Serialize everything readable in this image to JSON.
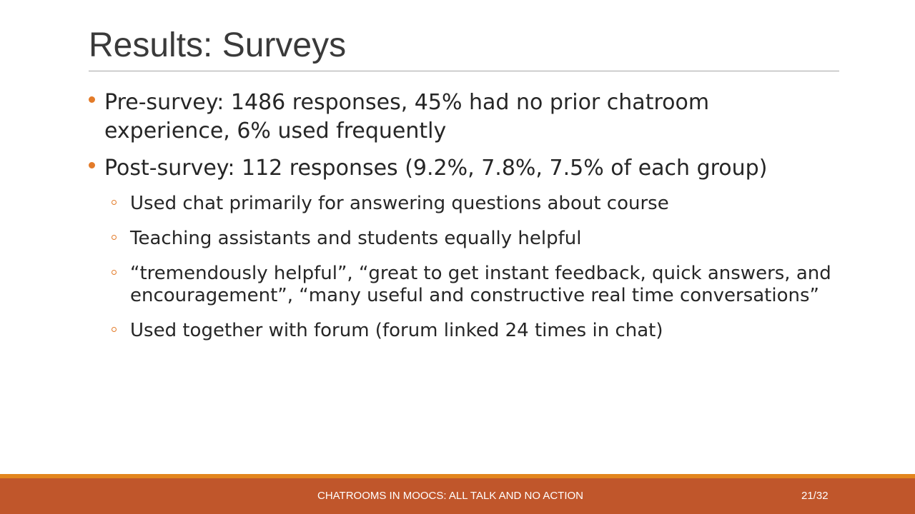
{
  "slide": {
    "title": "Results: Surveys",
    "bullets": [
      {
        "text": "Pre-survey: 1486 responses, 45% had no prior chatroom experience, 6% used frequently"
      },
      {
        "text": "Post-survey: 112 responses (9.2%, 7.8%, 7.5% of each group)",
        "sub": [
          "Used chat primarily for answering questions about course",
          "Teaching assistants and students equally helpful",
          "“tremendously helpful”, “great to get instant feedback, quick answers, and encouragement”, “many useful and constructive real time conversations”",
          "Used together with forum (forum linked 24 times in chat)"
        ]
      }
    ]
  },
  "footer": {
    "text": "CHATROOMS IN MOOCS: ALL TALK AND NO ACTION",
    "page": "21/32"
  },
  "colors": {
    "accent": "#e37b29",
    "footer_band": "#c0562b",
    "footer_stripe": "#e3861e"
  }
}
